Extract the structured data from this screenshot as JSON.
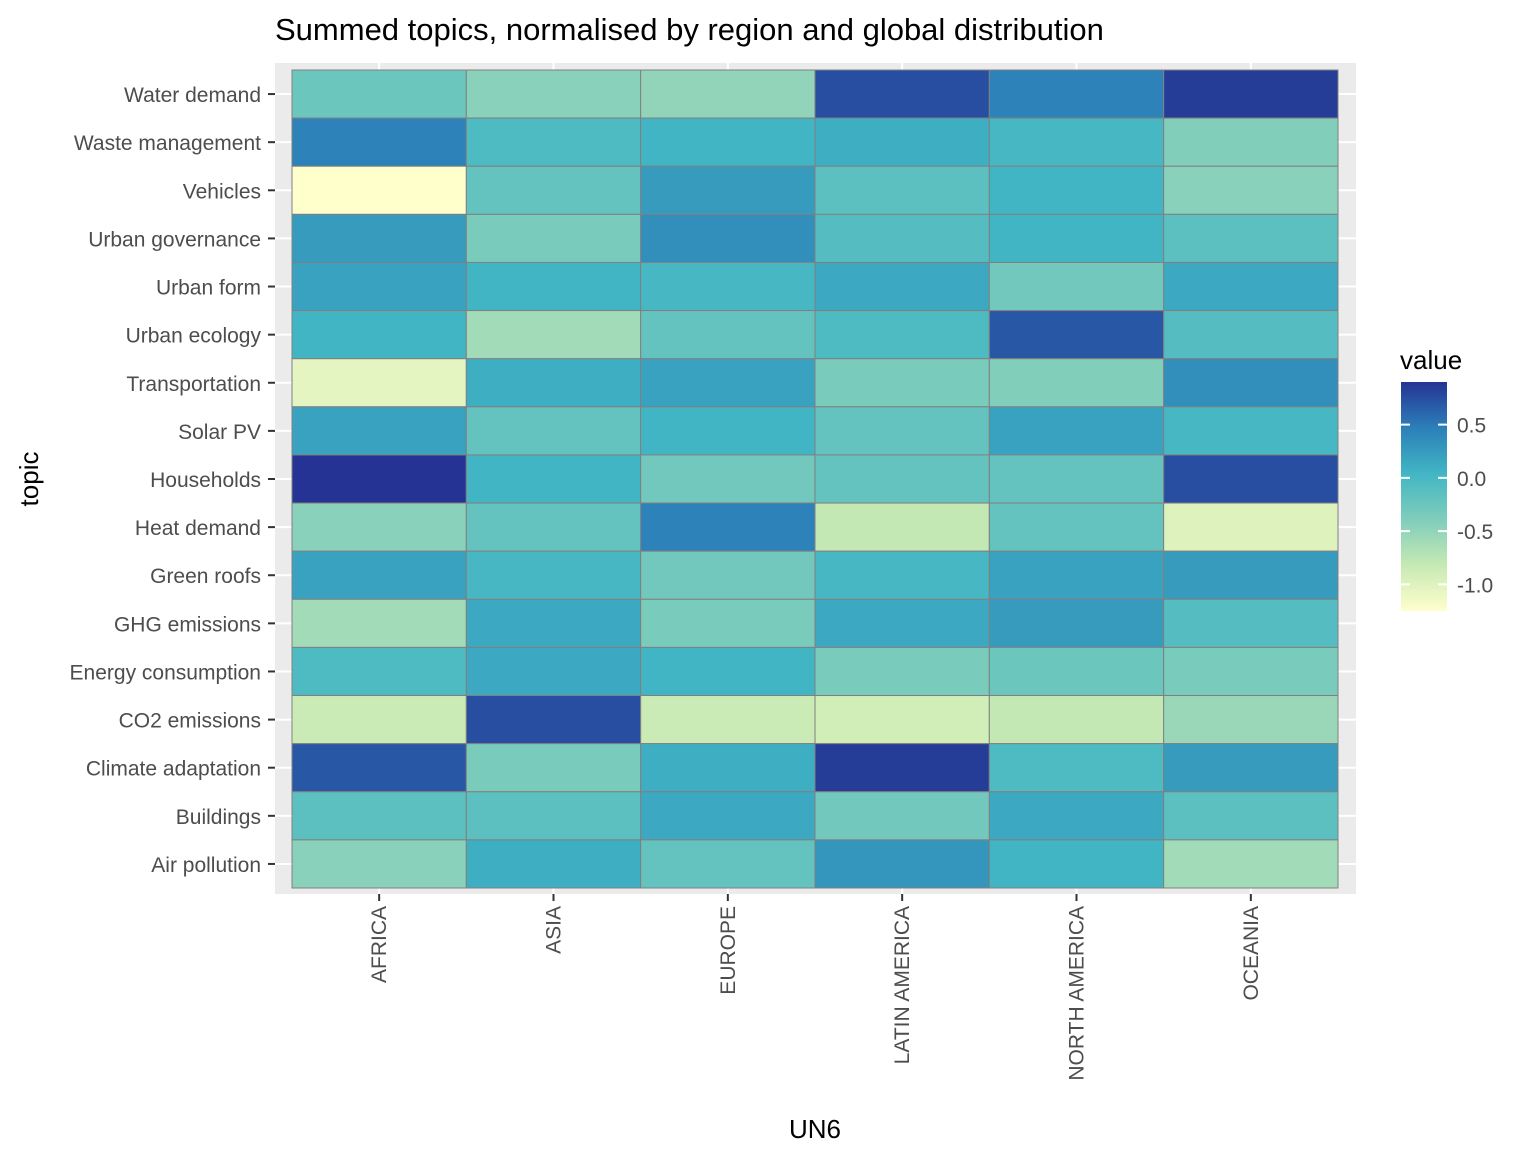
{
  "chart_data": {
    "type": "heatmap",
    "title": "Summed topics, normalised by region and global distribution",
    "xlabel": "UN6",
    "ylabel": "topic",
    "x_categories": [
      "AFRICA",
      "ASIA",
      "EUROPE",
      "LATIN AMERICA",
      "NORTH AMERICA",
      "OCEANIA"
    ],
    "y_categories_top_to_bottom": [
      "Water demand",
      "Waste management",
      "Vehicles",
      "Urban governance",
      "Urban form",
      "Urban ecology",
      "Transportation",
      "Solar PV",
      "Households",
      "Heat demand",
      "Green roofs",
      "GHG emissions",
      "Energy consumption",
      "CO2 emissions",
      "Climate adaptation",
      "Buildings",
      "Air pollution"
    ],
    "values": [
      [
        -0.25,
        -0.45,
        -0.5,
        0.75,
        0.45,
        0.85
      ],
      [
        0.45,
        -0.05,
        0.05,
        0.1,
        0.0,
        -0.4
      ],
      [
        -1.25,
        -0.2,
        0.25,
        -0.15,
        0.05,
        -0.45
      ],
      [
        0.25,
        -0.35,
        0.35,
        -0.1,
        0.05,
        -0.15
      ],
      [
        0.2,
        0.05,
        0.0,
        0.15,
        -0.3,
        0.15
      ],
      [
        0.05,
        -0.6,
        -0.2,
        -0.05,
        0.7,
        -0.1
      ],
      [
        -1.05,
        0.1,
        0.2,
        -0.35,
        -0.4,
        0.35
      ],
      [
        0.2,
        -0.2,
        0.05,
        -0.2,
        0.2,
        0.0
      ],
      [
        0.9,
        0.05,
        -0.3,
        -0.2,
        -0.2,
        0.75
      ],
      [
        -0.45,
        -0.2,
        0.45,
        -0.8,
        -0.2,
        -1.0
      ],
      [
        0.2,
        0.0,
        -0.3,
        0.0,
        0.2,
        0.25
      ],
      [
        -0.6,
        0.15,
        -0.35,
        0.15,
        0.25,
        -0.1
      ],
      [
        -0.05,
        0.15,
        0.05,
        -0.35,
        -0.25,
        -0.35
      ],
      [
        -0.85,
        0.75,
        -0.85,
        -0.9,
        -0.8,
        -0.55
      ],
      [
        0.7,
        -0.35,
        0.1,
        0.85,
        -0.05,
        0.25
      ],
      [
        -0.15,
        -0.15,
        0.15,
        -0.3,
        0.15,
        -0.15
      ],
      [
        -0.45,
        0.1,
        -0.2,
        0.3,
        0.05,
        -0.6
      ]
    ],
    "legend": {
      "title": "value",
      "placement": "right",
      "ticks": [
        0.5,
        0.0,
        -0.5,
        -1.0
      ],
      "tick_labels": [
        "0.5",
        "0.0",
        "-0.5",
        "-1.0"
      ],
      "range": [
        -1.25,
        0.9
      ]
    },
    "colors": {
      "scale": [
        "#ffffcc",
        "#c7e9b4",
        "#7fcdbb",
        "#41b6c4",
        "#2c7fb8",
        "#253494"
      ],
      "cell_border": "#808080",
      "panel_background": "#ebebeb",
      "gridline": "#ffffff",
      "text": "#4d4d4d",
      "title_text": "#000000"
    },
    "grid": true
  }
}
